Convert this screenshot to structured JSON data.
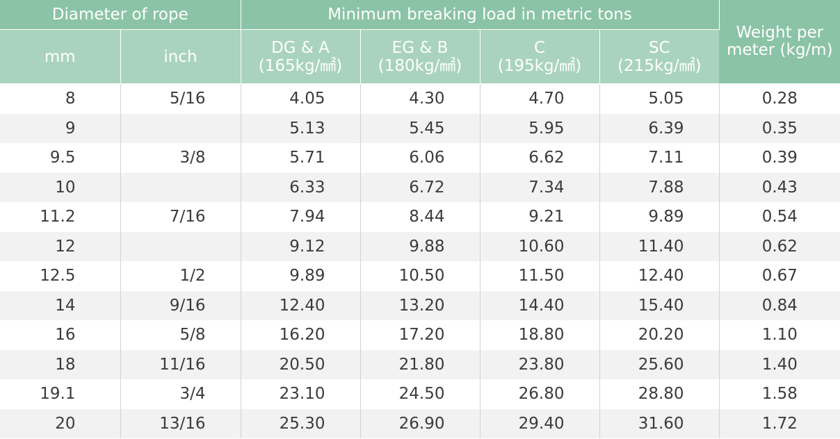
{
  "header": {
    "diameter_group": "Diameter of rope",
    "load_group": "Minimum breaking load in metric tons",
    "weight": "Weight per meter (kg/m)",
    "mm": "mm",
    "inch": "inch",
    "grades": [
      {
        "name": "DG & A",
        "strength": "(165kg/㎟)"
      },
      {
        "name": "EG & B",
        "strength": "(180kg/㎟)"
      },
      {
        "name": "C",
        "strength": "(195kg/㎟)"
      },
      {
        "name": "SC",
        "strength": "(215kg/㎟)"
      }
    ]
  },
  "rows": [
    {
      "mm": "8",
      "inch": "5/16",
      "dg_a": "4.05",
      "eg_b": "4.30",
      "c": "4.70",
      "sc": "5.05",
      "weight": "0.28"
    },
    {
      "mm": "9",
      "inch": "",
      "dg_a": "5.13",
      "eg_b": "5.45",
      "c": "5.95",
      "sc": "6.39",
      "weight": "0.35"
    },
    {
      "mm": "9.5",
      "inch": "3/8",
      "dg_a": "5.71",
      "eg_b": "6.06",
      "c": "6.62",
      "sc": "7.11",
      "weight": "0.39"
    },
    {
      "mm": "10",
      "inch": "",
      "dg_a": "6.33",
      "eg_b": "6.72",
      "c": "7.34",
      "sc": "7.88",
      "weight": "0.43"
    },
    {
      "mm": "11.2",
      "inch": "7/16",
      "dg_a": "7.94",
      "eg_b": "8.44",
      "c": "9.21",
      "sc": "9.89",
      "weight": "0.54"
    },
    {
      "mm": "12",
      "inch": "",
      "dg_a": "9.12",
      "eg_b": "9.88",
      "c": "10.60",
      "sc": "11.40",
      "weight": "0.62"
    },
    {
      "mm": "12.5",
      "inch": "1/2",
      "dg_a": "9.89",
      "eg_b": "10.50",
      "c": "11.50",
      "sc": "12.40",
      "weight": "0.67"
    },
    {
      "mm": "14",
      "inch": "9/16",
      "dg_a": "12.40",
      "eg_b": "13.20",
      "c": "14.40",
      "sc": "15.40",
      "weight": "0.84"
    },
    {
      "mm": "16",
      "inch": "5/8",
      "dg_a": "16.20",
      "eg_b": "17.20",
      "c": "18.80",
      "sc": "20.20",
      "weight": "1.10"
    },
    {
      "mm": "18",
      "inch": "11/16",
      "dg_a": "20.50",
      "eg_b": "21.80",
      "c": "23.80",
      "sc": "25.60",
      "weight": "1.40"
    },
    {
      "mm": "19.1",
      "inch": "3/4",
      "dg_a": "23.10",
      "eg_b": "24.50",
      "c": "26.80",
      "sc": "28.80",
      "weight": "1.58"
    },
    {
      "mm": "20",
      "inch": "13/16",
      "dg_a": "25.30",
      "eg_b": "26.90",
      "c": "29.40",
      "sc": "31.60",
      "weight": "1.72"
    }
  ],
  "colors": {
    "header_dark": "#8bc3a6",
    "header_light": "#a9d3bd",
    "row_alt": "#f2f2f2",
    "text": "#3b3b3b"
  }
}
